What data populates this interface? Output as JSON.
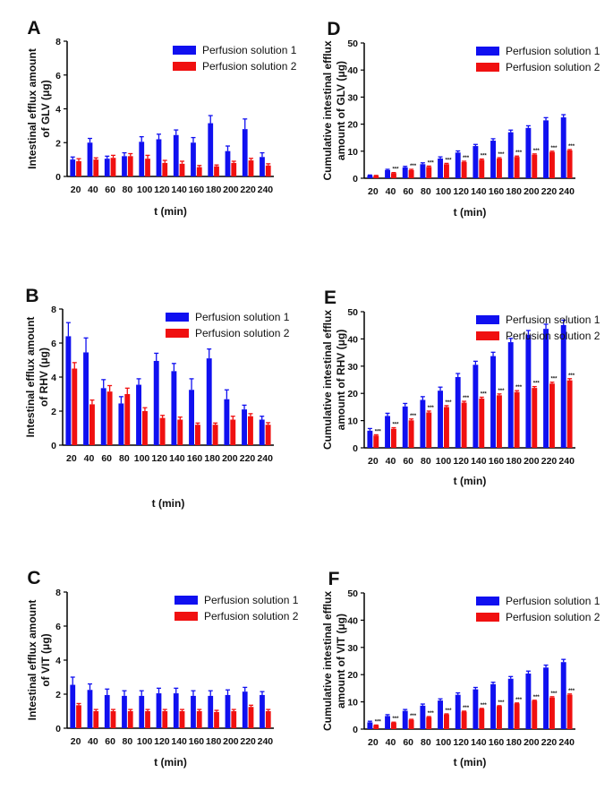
{
  "colors": {
    "series1": "#1010f0",
    "series2": "#f01010",
    "axis": "#000000"
  },
  "chart_data": [
    {
      "id": "A",
      "panel_label": "A",
      "type": "bar",
      "ylabel_lines": [
        "Intestinal efflux amount",
        "of GLV (μg)"
      ],
      "xlabel": "t (min)",
      "ylim": [
        0,
        8
      ],
      "yticks": [
        0,
        2,
        4,
        6,
        8
      ],
      "categories": [
        "20",
        "40",
        "60",
        "80",
        "100",
        "120",
        "140",
        "160",
        "180",
        "200",
        "220",
        "240"
      ],
      "series": [
        {
          "name": "Perfusion solution 1",
          "values": [
            1.0,
            2.0,
            1.05,
            1.2,
            2.05,
            2.2,
            2.45,
            2.0,
            3.15,
            1.5,
            2.8,
            1.15
          ],
          "errors": [
            0.15,
            0.25,
            0.15,
            0.2,
            0.3,
            0.3,
            0.3,
            0.3,
            0.45,
            0.3,
            0.6,
            0.25
          ]
        },
        {
          "name": "Perfusion solution 2",
          "values": [
            0.9,
            1.0,
            1.1,
            1.2,
            1.05,
            0.8,
            0.75,
            0.55,
            0.6,
            0.8,
            0.95,
            0.65
          ],
          "errors": [
            0.15,
            0.1,
            0.15,
            0.15,
            0.2,
            0.15,
            0.15,
            0.1,
            0.08,
            0.1,
            0.12,
            0.1
          ]
        }
      ],
      "significance": []
    },
    {
      "id": "B",
      "panel_label": "B",
      "type": "bar",
      "ylabel_lines": [
        "Intestinal efflux amount",
        "of RHV (μg)"
      ],
      "xlabel": "t (min)",
      "ylim": [
        0,
        8
      ],
      "yticks": [
        0,
        2,
        4,
        6,
        8
      ],
      "categories": [
        "20",
        "40",
        "60",
        "80",
        "100",
        "120",
        "140",
        "160",
        "180",
        "200",
        "220",
        "240"
      ],
      "series": [
        {
          "name": "Perfusion solution 1",
          "values": [
            6.4,
            5.45,
            3.35,
            2.45,
            3.55,
            4.95,
            4.35,
            3.25,
            5.1,
            2.7,
            2.1,
            1.5
          ],
          "errors": [
            0.8,
            0.85,
            0.5,
            0.4,
            0.35,
            0.45,
            0.45,
            0.65,
            0.55,
            0.55,
            0.25,
            0.2
          ]
        },
        {
          "name": "Perfusion solution 2",
          "values": [
            4.5,
            2.4,
            3.15,
            3.0,
            2.0,
            1.6,
            1.5,
            1.2,
            1.2,
            1.5,
            1.7,
            1.2
          ],
          "errors": [
            0.35,
            0.25,
            0.35,
            0.35,
            0.2,
            0.15,
            0.15,
            0.1,
            0.1,
            0.2,
            0.15,
            0.12
          ]
        }
      ],
      "significance": []
    },
    {
      "id": "C",
      "panel_label": "C",
      "type": "bar",
      "ylabel_lines": [
        "Intestinal efflux amount",
        "of VIT (μg)"
      ],
      "xlabel": "t (min)",
      "ylim": [
        0,
        8
      ],
      "yticks": [
        0,
        2,
        4,
        6,
        8
      ],
      "categories": [
        "20",
        "40",
        "60",
        "80",
        "100",
        "120",
        "140",
        "160",
        "180",
        "200",
        "220",
        "240"
      ],
      "series": [
        {
          "name": "Perfusion solution 1",
          "values": [
            2.55,
            2.25,
            1.95,
            1.9,
            1.9,
            2.05,
            2.05,
            1.9,
            1.9,
            1.95,
            2.15,
            1.95
          ],
          "errors": [
            0.45,
            0.35,
            0.35,
            0.3,
            0.3,
            0.3,
            0.3,
            0.3,
            0.3,
            0.3,
            0.25,
            0.2
          ]
        },
        {
          "name": "Perfusion solution 2",
          "values": [
            1.35,
            1.0,
            1.0,
            1.0,
            1.0,
            1.0,
            1.0,
            1.0,
            0.95,
            1.0,
            1.25,
            1.0
          ],
          "errors": [
            0.1,
            0.1,
            0.1,
            0.1,
            0.1,
            0.1,
            0.1,
            0.1,
            0.1,
            0.1,
            0.1,
            0.1
          ]
        }
      ],
      "significance": []
    },
    {
      "id": "D",
      "panel_label": "D",
      "type": "bar",
      "ylabel_lines": [
        "Cumulative intestinal efflux",
        "amount of GLV (μg)"
      ],
      "xlabel": "t (min)",
      "ylim": [
        0,
        50
      ],
      "yticks": [
        0,
        10,
        20,
        30,
        40,
        50
      ],
      "categories": [
        "20",
        "40",
        "60",
        "80",
        "100",
        "120",
        "140",
        "160",
        "180",
        "200",
        "220",
        "240"
      ],
      "series": [
        {
          "name": "Perfusion solution 1",
          "values": [
            1.0,
            3.0,
            4.0,
            5.2,
            7.3,
            9.5,
            11.9,
            13.9,
            17.0,
            18.6,
            21.4,
            22.5
          ],
          "errors": [
            0.2,
            0.3,
            0.4,
            0.5,
            0.6,
            0.6,
            0.6,
            0.7,
            0.8,
            0.8,
            1.0,
            1.0
          ]
        },
        {
          "name": "Perfusion solution 2",
          "values": [
            0.9,
            1.9,
            3.0,
            4.2,
            5.2,
            6.0,
            6.8,
            7.3,
            7.9,
            8.7,
            9.7,
            10.3
          ],
          "errors": [
            0.15,
            0.2,
            0.3,
            0.3,
            0.3,
            0.3,
            0.3,
            0.3,
            0.3,
            0.3,
            0.3,
            0.3
          ]
        }
      ],
      "significance": [
        "",
        "***",
        "***",
        "***",
        "***",
        "***",
        "***",
        "***",
        "***",
        "***",
        "***",
        "***"
      ]
    },
    {
      "id": "E",
      "panel_label": "E",
      "type": "bar",
      "ylabel_lines": [
        "Cumulative intestinal efflux",
        "amount of RHV (μg)"
      ],
      "xlabel": "t (min)",
      "ylim": [
        0,
        50
      ],
      "yticks": [
        0,
        10,
        20,
        30,
        40,
        50
      ],
      "categories": [
        "20",
        "40",
        "60",
        "80",
        "100",
        "120",
        "140",
        "160",
        "180",
        "200",
        "220",
        "240"
      ],
      "series": [
        {
          "name": "Perfusion solution 1",
          "values": [
            6.3,
            11.7,
            15.2,
            17.6,
            21.0,
            26.0,
            30.5,
            33.7,
            38.8,
            41.5,
            43.7,
            45.1
          ],
          "errors": [
            0.8,
            1.0,
            1.1,
            1.2,
            1.3,
            1.3,
            1.3,
            1.4,
            1.4,
            1.6,
            1.7,
            1.8
          ]
        },
        {
          "name": "Perfusion solution 2",
          "values": [
            4.5,
            7.0,
            10.1,
            13.0,
            15.0,
            16.6,
            18.1,
            19.3,
            20.5,
            22.0,
            23.6,
            24.8
          ],
          "errors": [
            0.3,
            0.4,
            0.5,
            0.5,
            0.5,
            0.5,
            0.5,
            0.5,
            0.5,
            0.5,
            0.5,
            0.6
          ]
        }
      ],
      "significance": [
        "***",
        "***",
        "***",
        "***",
        "***",
        "***",
        "***",
        "***",
        "***",
        "***",
        "***",
        "***"
      ]
    },
    {
      "id": "F",
      "panel_label": "F",
      "type": "bar",
      "ylabel_lines": [
        "Cumulative intestinal efflux",
        "amount of VIT (μg)"
      ],
      "xlabel": "t (min)",
      "ylim": [
        0,
        50
      ],
      "yticks": [
        0,
        10,
        20,
        30,
        40,
        50
      ],
      "categories": [
        "20",
        "40",
        "60",
        "80",
        "100",
        "120",
        "140",
        "160",
        "180",
        "200",
        "220",
        "240"
      ],
      "series": [
        {
          "name": "Perfusion solution 1",
          "values": [
            2.5,
            4.8,
            6.7,
            8.6,
            10.5,
            12.6,
            14.6,
            16.5,
            18.5,
            20.4,
            22.6,
            24.6
          ],
          "errors": [
            0.4,
            0.5,
            0.5,
            0.6,
            0.6,
            0.7,
            0.7,
            0.7,
            0.8,
            0.9,
            0.9,
            1.0
          ]
        },
        {
          "name": "Perfusion solution 2",
          "values": [
            1.4,
            2.4,
            3.4,
            4.4,
            5.4,
            6.4,
            7.4,
            8.4,
            9.4,
            10.4,
            11.6,
            12.6
          ],
          "errors": [
            0.1,
            0.15,
            0.2,
            0.2,
            0.2,
            0.2,
            0.2,
            0.2,
            0.2,
            0.2,
            0.3,
            0.3
          ]
        }
      ],
      "significance": [
        "***",
        "***",
        "***",
        "***",
        "***",
        "***",
        "***",
        "***",
        "***",
        "***",
        "***",
        "***"
      ]
    }
  ]
}
